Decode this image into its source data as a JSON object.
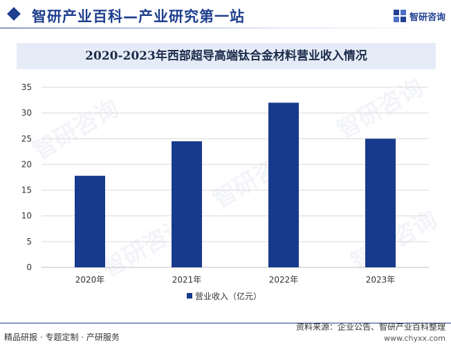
{
  "header": {
    "title": "智研产业百科—产业研究第一站",
    "brand_name": "智研咨询"
  },
  "watermark": "智研咨询",
  "colors": {
    "brand": "#1f3f8f",
    "bar": "#173a8c",
    "title_band": "#e6ecf7",
    "grid": "#d9d9d9"
  },
  "chart_data": {
    "type": "bar",
    "title": "2020-2023年西部超导高端钛合金材料营业收入情况",
    "categories": [
      "2020年",
      "2021年",
      "2022年",
      "2023年"
    ],
    "series": [
      {
        "name": "营业收入（亿元）",
        "values": [
          17.8,
          24.5,
          32.0,
          25.0
        ]
      }
    ],
    "ylim": [
      0,
      35
    ],
    "yticks": [
      0,
      5,
      10,
      15,
      20,
      25,
      30,
      35
    ],
    "grid": true,
    "legend_position": "bottom"
  },
  "footer": {
    "left_text": "精品研报 · 专题定制 · 产研服务",
    "source": "资料来源：企业公告、智研产业百科整理",
    "url": "www.chyxx.com"
  }
}
